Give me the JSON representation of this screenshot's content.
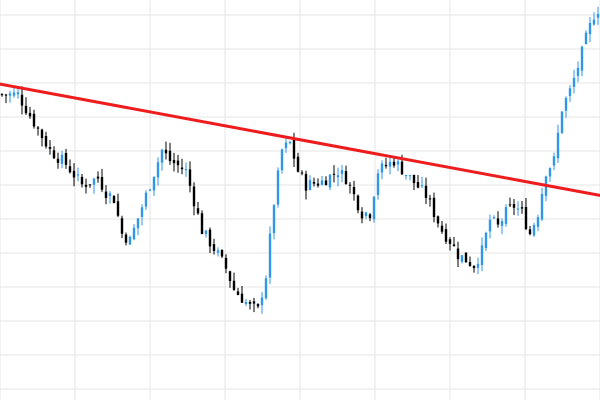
{
  "chart_data": {
    "type": "candlestick",
    "title": "",
    "xlabel": "",
    "ylabel": "",
    "x_count": 150,
    "ylim": [
      0,
      100
    ],
    "grid": true,
    "legend": "none",
    "colors": {
      "up": "#2f96e8",
      "down": "#000000",
      "trendline": "#ee1c1c",
      "grid": "#e6e6e6",
      "background": "#ffffff"
    },
    "trendline": {
      "start": {
        "x": 0,
        "y": 77
      },
      "end": {
        "x": 150,
        "y": 45
      }
    },
    "close_path": [
      [
        0,
        74
      ],
      [
        4,
        74
      ],
      [
        8,
        66
      ],
      [
        12,
        58
      ],
      [
        16,
        54
      ],
      [
        20,
        48
      ],
      [
        24,
        50
      ],
      [
        26,
        46
      ],
      [
        28,
        44
      ],
      [
        30,
        34
      ],
      [
        32,
        32
      ],
      [
        36,
        45
      ],
      [
        40,
        58
      ],
      [
        42,
        55
      ],
      [
        46,
        52
      ],
      [
        50,
        35
      ],
      [
        54,
        28
      ],
      [
        56,
        24
      ],
      [
        58,
        18
      ],
      [
        62,
        13
      ],
      [
        64,
        12
      ],
      [
        66,
        22
      ],
      [
        68,
        43
      ],
      [
        70,
        58
      ],
      [
        72,
        60
      ],
      [
        74,
        52
      ],
      [
        76,
        48
      ],
      [
        80,
        49
      ],
      [
        84,
        52
      ],
      [
        86,
        50
      ],
      [
        90,
        40
      ],
      [
        92,
        40
      ],
      [
        94,
        52
      ],
      [
        98,
        55
      ],
      [
        102,
        50
      ],
      [
        106,
        45
      ],
      [
        108,
        40
      ],
      [
        110,
        35
      ],
      [
        112,
        32
      ],
      [
        114,
        28
      ],
      [
        118,
        25
      ],
      [
        120,
        29
      ],
      [
        122,
        38
      ],
      [
        124,
        36
      ],
      [
        126,
        40
      ],
      [
        128,
        42
      ],
      [
        130,
        40
      ],
      [
        132,
        34
      ],
      [
        134,
        40
      ],
      [
        136,
        52
      ],
      [
        138,
        55
      ],
      [
        140,
        70
      ],
      [
        142,
        75
      ],
      [
        144,
        82
      ],
      [
        146,
        90
      ],
      [
        148,
        97
      ],
      [
        150,
        100
      ]
    ],
    "volatility": 2.6,
    "seed": 7
  }
}
